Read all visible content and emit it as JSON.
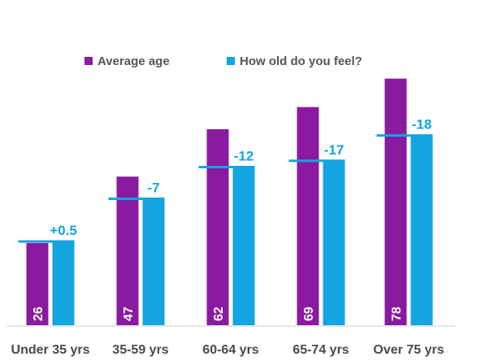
{
  "chart_data": {
    "type": "bar",
    "categories": [
      "Under 35 yrs",
      "35-59 yrs",
      "60-64 yrs",
      "65-74 yrs",
      "Over 75 yrs"
    ],
    "series": [
      {
        "name": "Average age",
        "values": [
          26,
          47,
          62,
          69,
          78
        ],
        "color": "#8a1aa0"
      },
      {
        "name": "How old do you feel?",
        "values": [
          26.5,
          40,
          50,
          52,
          60
        ],
        "color": "#12a5e0"
      }
    ],
    "difference_labels": [
      "+0.5",
      "-7",
      "-12",
      "-17",
      "-18"
    ],
    "average_value_labels": [
      "26",
      "47",
      "62",
      "69",
      "78"
    ],
    "ylim": [
      0,
      90
    ],
    "legend": "top-center",
    "grid": false
  }
}
